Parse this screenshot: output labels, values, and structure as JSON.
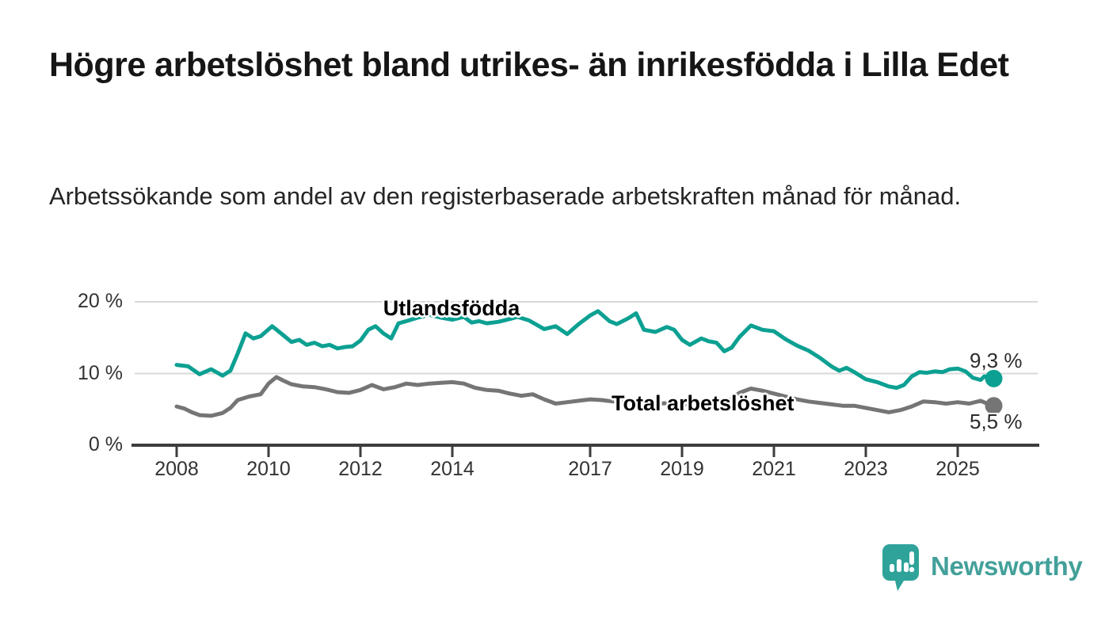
{
  "header": {
    "title": "Högre arbetslöshet bland utrikes- än inrikesfödda i Lilla Edet",
    "subtitle": "Arbetssökande som andel av den registerbaserade arbetskraften månad för månad."
  },
  "footer": {
    "brand": "Newsworthy"
  },
  "colors": {
    "accent_teal": "#0CA092",
    "line_gray": "#757575",
    "gridline": "#d9d9d9",
    "axis": "#3d3d3d",
    "logo_bubble": "#2fa39a",
    "logo_text": "#43a09a"
  },
  "chart_data": {
    "type": "line",
    "title": "Högre arbetslöshet bland utrikes- än inrikesfödda i Lilla Edet",
    "subtitle": "Arbetssökande som andel av den registerbaserade arbetskraften månad för månad.",
    "xlabel": "",
    "ylabel": "",
    "unit": "%",
    "grid": "horizontal",
    "legend_position": "inline-labels",
    "xlim": [
      2007.1,
      2026.7
    ],
    "ylim": [
      0,
      22
    ],
    "x_ticks": [
      2008,
      2010,
      2012,
      2014,
      2017,
      2019,
      2021,
      2023,
      2025
    ],
    "y_ticks": [
      {
        "label": "20 %",
        "value": 20
      },
      {
        "label": "10 %",
        "value": 10
      },
      {
        "label": "0 %",
        "value": 0
      }
    ],
    "series": [
      {
        "name": "Utlandsfödda",
        "color": "#0CA092",
        "end_label": "9,3 %",
        "end_value": 9.3,
        "points": [
          [
            2008.0,
            11.2
          ],
          [
            2008.25,
            11.0
          ],
          [
            2008.5,
            9.9
          ],
          [
            2008.75,
            10.6
          ],
          [
            2009.0,
            9.7
          ],
          [
            2009.17,
            10.4
          ],
          [
            2009.33,
            12.8
          ],
          [
            2009.5,
            15.6
          ],
          [
            2009.67,
            14.9
          ],
          [
            2009.83,
            15.2
          ],
          [
            2010.08,
            16.6
          ],
          [
            2010.33,
            15.3
          ],
          [
            2010.5,
            14.4
          ],
          [
            2010.67,
            14.7
          ],
          [
            2010.83,
            14.0
          ],
          [
            2011.0,
            14.3
          ],
          [
            2011.17,
            13.8
          ],
          [
            2011.33,
            14.0
          ],
          [
            2011.5,
            13.5
          ],
          [
            2011.67,
            13.7
          ],
          [
            2011.83,
            13.8
          ],
          [
            2012.0,
            14.6
          ],
          [
            2012.17,
            16.1
          ],
          [
            2012.33,
            16.6
          ],
          [
            2012.5,
            15.6
          ],
          [
            2012.67,
            14.9
          ],
          [
            2012.83,
            17.0
          ],
          [
            2013.0,
            17.3
          ],
          [
            2013.25,
            17.8
          ],
          [
            2013.5,
            18.2
          ],
          [
            2013.75,
            17.8
          ],
          [
            2014.0,
            17.5
          ],
          [
            2014.25,
            17.9
          ],
          [
            2014.42,
            17.1
          ],
          [
            2014.58,
            17.3
          ],
          [
            2014.75,
            17.0
          ],
          [
            2015.0,
            17.2
          ],
          [
            2015.25,
            17.6
          ],
          [
            2015.42,
            17.9
          ],
          [
            2015.67,
            17.4
          ],
          [
            2016.0,
            16.2
          ],
          [
            2016.25,
            16.6
          ],
          [
            2016.5,
            15.5
          ],
          [
            2016.75,
            16.9
          ],
          [
            2017.0,
            18.1
          ],
          [
            2017.17,
            18.7
          ],
          [
            2017.42,
            17.3
          ],
          [
            2017.58,
            16.9
          ],
          [
            2017.83,
            17.7
          ],
          [
            2018.0,
            18.4
          ],
          [
            2018.17,
            16.1
          ],
          [
            2018.42,
            15.8
          ],
          [
            2018.67,
            16.5
          ],
          [
            2018.83,
            16.1
          ],
          [
            2019.0,
            14.7
          ],
          [
            2019.17,
            14.0
          ],
          [
            2019.42,
            14.9
          ],
          [
            2019.58,
            14.5
          ],
          [
            2019.75,
            14.3
          ],
          [
            2019.92,
            13.1
          ],
          [
            2020.08,
            13.6
          ],
          [
            2020.25,
            15.1
          ],
          [
            2020.5,
            16.7
          ],
          [
            2020.75,
            16.1
          ],
          [
            2021.0,
            15.9
          ],
          [
            2021.25,
            14.8
          ],
          [
            2021.5,
            13.9
          ],
          [
            2021.75,
            13.2
          ],
          [
            2022.0,
            12.2
          ],
          [
            2022.25,
            11.0
          ],
          [
            2022.42,
            10.4
          ],
          [
            2022.58,
            10.8
          ],
          [
            2022.75,
            10.2
          ],
          [
            2023.0,
            9.2
          ],
          [
            2023.25,
            8.8
          ],
          [
            2023.5,
            8.2
          ],
          [
            2023.67,
            8.0
          ],
          [
            2023.83,
            8.4
          ],
          [
            2024.0,
            9.6
          ],
          [
            2024.17,
            10.2
          ],
          [
            2024.33,
            10.1
          ],
          [
            2024.5,
            10.3
          ],
          [
            2024.67,
            10.2
          ],
          [
            2024.83,
            10.6
          ],
          [
            2025.0,
            10.7
          ],
          [
            2025.17,
            10.3
          ],
          [
            2025.33,
            9.4
          ],
          [
            2025.5,
            9.1
          ],
          [
            2025.58,
            9.6
          ],
          [
            2025.75,
            9.3
          ]
        ]
      },
      {
        "name": "Total arbetslöshet",
        "color": "#757575",
        "end_label": "5,5 %",
        "end_value": 5.5,
        "points": [
          [
            2008.0,
            5.4
          ],
          [
            2008.17,
            5.1
          ],
          [
            2008.33,
            4.6
          ],
          [
            2008.5,
            4.2
          ],
          [
            2008.75,
            4.1
          ],
          [
            2009.0,
            4.5
          ],
          [
            2009.17,
            5.2
          ],
          [
            2009.33,
            6.3
          ],
          [
            2009.58,
            6.8
          ],
          [
            2009.83,
            7.1
          ],
          [
            2010.0,
            8.6
          ],
          [
            2010.17,
            9.5
          ],
          [
            2010.33,
            9.0
          ],
          [
            2010.5,
            8.5
          ],
          [
            2010.75,
            8.2
          ],
          [
            2011.0,
            8.1
          ],
          [
            2011.25,
            7.8
          ],
          [
            2011.5,
            7.4
          ],
          [
            2011.75,
            7.3
          ],
          [
            2012.0,
            7.7
          ],
          [
            2012.25,
            8.4
          ],
          [
            2012.5,
            7.8
          ],
          [
            2012.75,
            8.1
          ],
          [
            2013.0,
            8.6
          ],
          [
            2013.25,
            8.4
          ],
          [
            2013.5,
            8.6
          ],
          [
            2013.75,
            8.7
          ],
          [
            2014.0,
            8.8
          ],
          [
            2014.25,
            8.6
          ],
          [
            2014.5,
            8.0
          ],
          [
            2014.75,
            7.7
          ],
          [
            2015.0,
            7.6
          ],
          [
            2015.25,
            7.2
          ],
          [
            2015.5,
            6.9
          ],
          [
            2015.75,
            7.1
          ],
          [
            2016.0,
            6.4
          ],
          [
            2016.25,
            5.8
          ],
          [
            2016.5,
            6.0
          ],
          [
            2016.75,
            6.2
          ],
          [
            2017.0,
            6.4
          ],
          [
            2017.25,
            6.3
          ],
          [
            2017.5,
            6.1
          ],
          [
            2017.75,
            6.0
          ],
          [
            2018.0,
            6.1
          ],
          [
            2018.25,
            5.9
          ],
          [
            2018.5,
            5.8
          ],
          [
            2018.75,
            5.9
          ],
          [
            2019.0,
            5.7
          ],
          [
            2019.25,
            5.6
          ],
          [
            2019.5,
            5.8
          ],
          [
            2019.75,
            5.7
          ],
          [
            2020.0,
            6.1
          ],
          [
            2020.25,
            7.3
          ],
          [
            2020.5,
            7.9
          ],
          [
            2020.75,
            7.6
          ],
          [
            2021.0,
            7.2
          ],
          [
            2021.25,
            6.8
          ],
          [
            2021.5,
            6.4
          ],
          [
            2021.75,
            6.1
          ],
          [
            2022.0,
            5.9
          ],
          [
            2022.25,
            5.7
          ],
          [
            2022.5,
            5.5
          ],
          [
            2022.75,
            5.5
          ],
          [
            2023.0,
            5.2
          ],
          [
            2023.25,
            4.9
          ],
          [
            2023.5,
            4.6
          ],
          [
            2023.75,
            4.9
          ],
          [
            2024.0,
            5.4
          ],
          [
            2024.25,
            6.1
          ],
          [
            2024.5,
            6.0
          ],
          [
            2024.75,
            5.8
          ],
          [
            2025.0,
            6.0
          ],
          [
            2025.25,
            5.8
          ],
          [
            2025.5,
            6.2
          ],
          [
            2025.75,
            5.5
          ]
        ]
      }
    ]
  }
}
